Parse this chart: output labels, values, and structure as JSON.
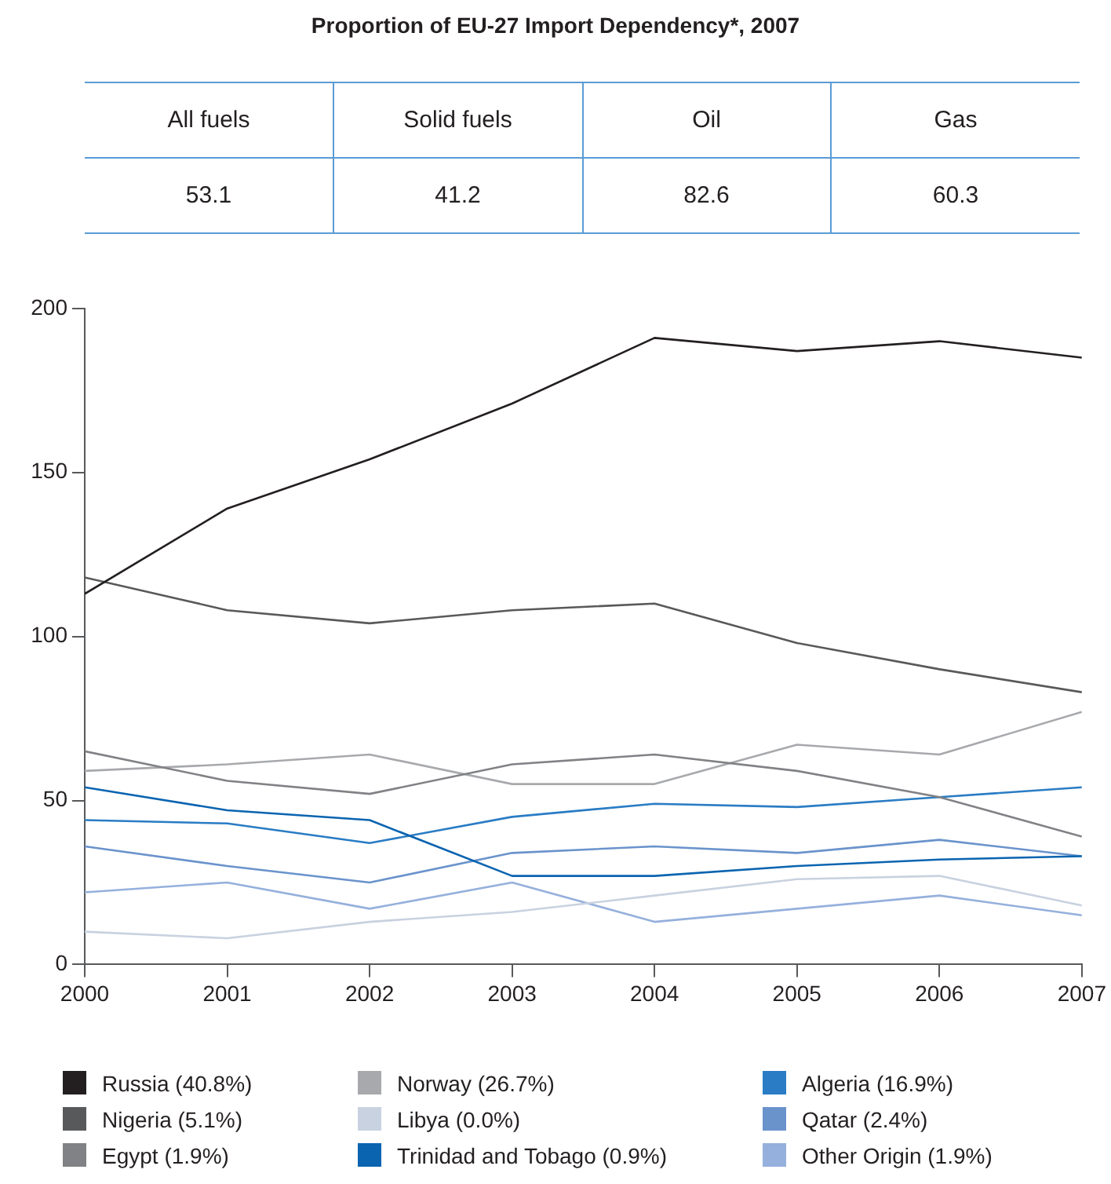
{
  "chart_data": {
    "type": "line",
    "title": "Proportion of EU-27 Import Dependency*, 2007",
    "annotations": [
      "All fuels",
      "Solid fuels",
      "Oil",
      "Gas",
      "53.1",
      "41.2",
      "82.6",
      "60.3"
    ],
    "x": [
      2000,
      2001,
      2002,
      2003,
      2004,
      2005,
      2006,
      2007
    ],
    "xlim": [
      2000,
      2007
    ],
    "xticks": [
      2000,
      2001,
      2002,
      2003,
      2004,
      2005,
      2006,
      2007
    ],
    "ylim": [
      0,
      200
    ],
    "yticks": [
      0,
      50,
      100,
      150,
      200
    ],
    "grid": false,
    "legend": "bottom",
    "marker": "none",
    "line_style": "solid",
    "series": [
      {
        "name": "Russia (40.8%)",
        "color": "#231f20",
        "values": [
          113,
          139,
          154,
          171,
          191,
          187,
          190,
          185
        ]
      },
      {
        "name": "Nigeria (5.1%)",
        "color": "#58595b",
        "values": [
          118,
          108,
          104,
          108,
          110,
          98,
          90,
          83
        ]
      },
      {
        "name": "Egypt (1.9%)",
        "color": "#808285",
        "values": [
          65,
          56,
          52,
          61,
          64,
          59,
          51,
          39
        ]
      },
      {
        "name": "Norway (26.7%)",
        "color": "#a7a9ac",
        "values": [
          59,
          61,
          64,
          55,
          55,
          67,
          64,
          77
        ]
      },
      {
        "name": "Libya (0.0%)",
        "color": "#c8d2e0",
        "values": [
          10,
          8,
          13,
          16,
          21,
          26,
          27,
          18
        ]
      },
      {
        "name": "Trinidad and Tobago (0.9%)",
        "color": "#0a64b0",
        "values": [
          54,
          47,
          44,
          27,
          27,
          30,
          32,
          33
        ]
      },
      {
        "name": "Algeria (16.9%)",
        "color": "#2a7cc4",
        "values": [
          44,
          43,
          37,
          45,
          49,
          48,
          51,
          54
        ]
      },
      {
        "name": "Qatar (2.4%)",
        "color": "#6a93cc",
        "values": [
          36,
          30,
          25,
          34,
          36,
          34,
          38,
          33
        ]
      },
      {
        "name": "Other Origin (1.9%)",
        "color": "#95b0dc",
        "values": [
          22,
          25,
          17,
          25,
          13,
          17,
          21,
          15
        ]
      }
    ]
  }
}
